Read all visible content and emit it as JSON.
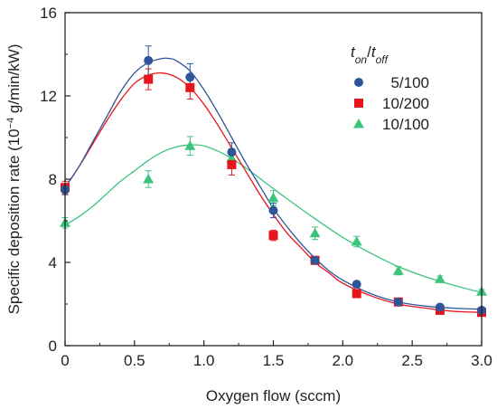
{
  "chart_data": {
    "type": "scatter",
    "xlabel": "Oxygen flow (sccm)",
    "ylabel": {
      "prefix": "Specific deposition rate (10",
      "exponent": "−4",
      "suffix": " g/min/kW)"
    },
    "xlim": [
      0,
      3.0
    ],
    "ylim": [
      0,
      16
    ],
    "xticks": [
      "0",
      "0.5",
      "1.0",
      "1.5",
      "2.0",
      "2.5",
      "3.0"
    ],
    "xtick_values": [
      0,
      0.5,
      1.0,
      1.5,
      2.0,
      2.5,
      3.0
    ],
    "yticks": [
      "0",
      "4",
      "8",
      "12",
      "16"
    ],
    "ytick_values": [
      0,
      4,
      8,
      12,
      16
    ],
    "grid": false,
    "legend": {
      "placement": "top-right",
      "title": {
        "t1": "t",
        "sub1": "on",
        "slash": "/",
        "t2": "t",
        "sub2": "off"
      }
    },
    "series": [
      {
        "name": "5/100",
        "marker": "circle",
        "color": "#2e5597",
        "x": [
          0,
          0.6,
          0.9,
          1.2,
          1.5,
          1.8,
          2.1,
          2.4,
          2.7,
          3.0
        ],
        "y": [
          7.5,
          13.7,
          12.9,
          9.3,
          6.5,
          4.1,
          2.95,
          2.1,
          1.85,
          1.7
        ],
        "err": [
          0.25,
          0.7,
          0.65,
          0.45,
          0.35,
          0.15,
          0.1,
          0.1,
          0.1,
          0.1
        ],
        "fit_x": [
          0,
          0.1,
          0.2,
          0.3,
          0.4,
          0.5,
          0.6,
          0.7,
          0.75,
          0.8,
          0.9,
          1.0,
          1.1,
          1.2,
          1.3,
          1.4,
          1.5,
          1.6,
          1.7,
          1.8,
          1.9,
          2.0,
          2.2,
          2.4,
          2.6,
          2.8,
          3.0
        ],
        "fit_y": [
          7.6,
          8.6,
          9.8,
          11.0,
          12.2,
          13.1,
          13.6,
          13.8,
          13.8,
          13.7,
          13.2,
          12.3,
          11.2,
          10.0,
          8.8,
          7.7,
          6.6,
          5.7,
          4.9,
          4.2,
          3.6,
          3.15,
          2.5,
          2.1,
          1.9,
          1.8,
          1.75
        ]
      },
      {
        "name": "10/200",
        "marker": "square",
        "color": "#e8141b",
        "x": [
          0,
          0.6,
          0.9,
          1.2,
          1.5,
          1.8,
          2.1,
          2.4,
          2.7,
          3.0
        ],
        "y": [
          7.6,
          12.8,
          12.4,
          8.7,
          5.3,
          4.1,
          2.5,
          2.1,
          1.7,
          1.6
        ],
        "err": [
          0.3,
          0.5,
          0.55,
          0.5,
          0.25,
          0.15,
          0.1,
          0.1,
          0.1,
          0.1
        ],
        "fit_x": [
          0,
          0.1,
          0.2,
          0.3,
          0.4,
          0.5,
          0.6,
          0.7,
          0.8,
          0.9,
          1.0,
          1.1,
          1.2,
          1.3,
          1.4,
          1.5,
          1.6,
          1.7,
          1.8,
          1.9,
          2.0,
          2.2,
          2.4,
          2.6,
          2.8,
          3.0
        ],
        "fit_y": [
          7.6,
          8.6,
          9.7,
          10.8,
          11.8,
          12.6,
          13.0,
          13.1,
          12.9,
          12.4,
          11.6,
          10.6,
          9.5,
          8.4,
          7.3,
          6.3,
          5.4,
          4.7,
          4.0,
          3.5,
          3.0,
          2.4,
          2.0,
          1.8,
          1.65,
          1.6
        ]
      },
      {
        "name": "10/100",
        "marker": "triangle",
        "color": "#3cc47c",
        "x": [
          0,
          0.6,
          0.9,
          1.2,
          1.5,
          1.8,
          2.1,
          2.4,
          2.7,
          3.0
        ],
        "y": [
          5.9,
          8.0,
          9.6,
          9.0,
          7.1,
          5.4,
          5.0,
          3.6,
          3.2,
          2.6
        ],
        "err": [
          0.25,
          0.4,
          0.45,
          0.3,
          0.35,
          0.3,
          0.25,
          0.2,
          0.15,
          0.1
        ],
        "fit_x": [
          0,
          0.1,
          0.2,
          0.3,
          0.4,
          0.5,
          0.6,
          0.7,
          0.8,
          0.9,
          1.0,
          1.1,
          1.2,
          1.3,
          1.4,
          1.5,
          1.6,
          1.8,
          2.0,
          2.2,
          2.4,
          2.6,
          2.8,
          3.0
        ],
        "fit_y": [
          5.8,
          6.2,
          6.7,
          7.3,
          7.9,
          8.4,
          8.9,
          9.3,
          9.55,
          9.65,
          9.6,
          9.35,
          9.0,
          8.55,
          8.05,
          7.55,
          7.05,
          6.1,
          5.2,
          4.45,
          3.8,
          3.3,
          2.9,
          2.55
        ]
      }
    ]
  }
}
